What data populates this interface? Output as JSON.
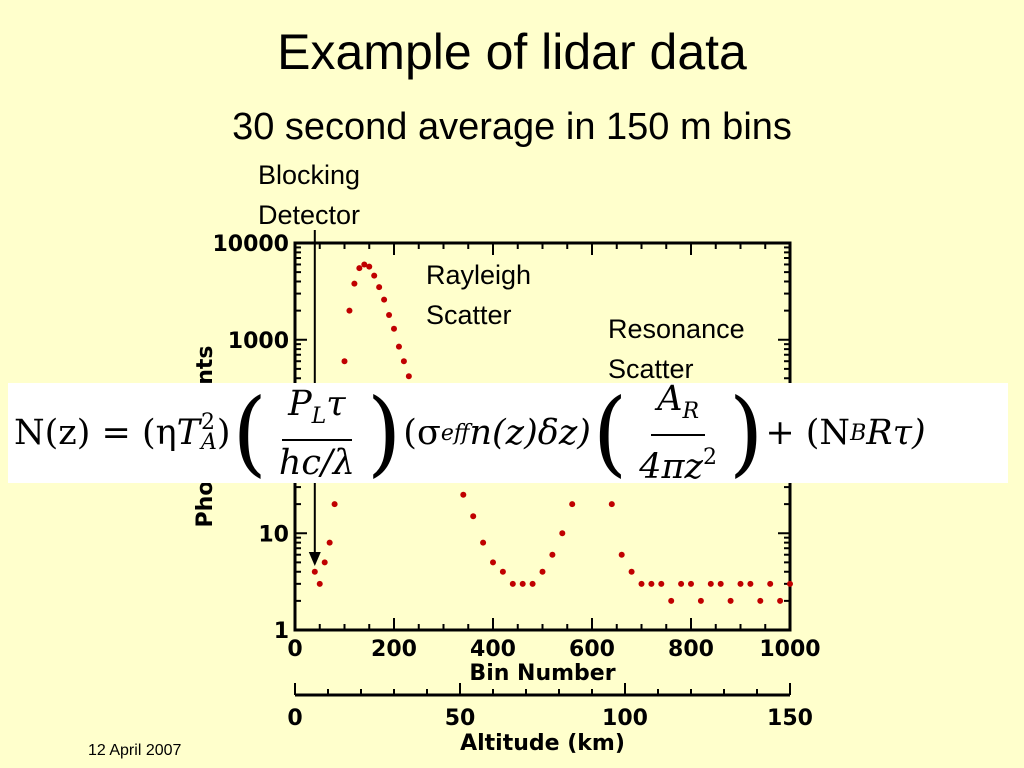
{
  "slide": {
    "title": "Example of lidar data",
    "subtitle": "30 second average in 150 m bins",
    "date": "12 April 2007"
  },
  "annotations": {
    "blocking": [
      "Blocking",
      "Detector"
    ],
    "rayleigh": [
      "Rayleigh",
      "Scatter"
    ],
    "resonance": [
      "Resonance",
      "Scatter"
    ]
  },
  "equation": {
    "text": "N(z) = (ηT_A^2) (P_L τ / (hc/λ)) (σ_eff n(z) δz) (A_R / (4π z^2)) + (N_B R τ)",
    "lhs": "N(z) = (η",
    "T": "T",
    "T_sup": "2",
    "T_sub": "A",
    "close": ")",
    "frac1_num_P": "P",
    "frac1_num_sub": "L",
    "frac1_num_tau": "τ",
    "frac1_den": "hc/λ",
    "sigma": "(σ",
    "sigma_sub": "eff",
    "mid": "n(z)δz)",
    "frac2_num_A": "A",
    "frac2_num_sub": "R",
    "frac2_den": "4πz",
    "frac2_den_sup": "2",
    "plus": "+ (N",
    "plus_sub": "B",
    "tail": "Rτ)"
  },
  "chart_data": {
    "type": "scatter",
    "xlabel": "Bin Number",
    "ylabel": "Photon Counts",
    "xlim": [
      0,
      1000
    ],
    "ylim": [
      1,
      10000
    ],
    "yscale": "log",
    "xticks": [
      "0",
      "200",
      "400",
      "600",
      "800",
      "1000"
    ],
    "yticks": [
      "1",
      "10",
      "100",
      "1000",
      "10000"
    ],
    "secondary_x": {
      "label": "Altitude (km)",
      "range": [
        0,
        150
      ],
      "ticks": [
        "0",
        "50",
        "100",
        "150"
      ]
    },
    "marker_color": "#c00000",
    "series": [
      {
        "x": [
          40,
          50,
          60,
          70,
          80,
          90,
          100,
          110,
          120,
          130,
          140,
          150,
          160,
          170,
          180,
          190,
          200,
          210,
          220,
          230,
          240,
          250,
          260,
          270,
          280,
          300,
          320,
          340,
          360,
          380,
          400,
          420,
          440,
          460,
          480,
          500,
          520,
          540,
          560,
          580,
          600,
          620,
          640,
          660,
          680,
          700,
          720,
          740,
          760,
          780,
          800,
          820,
          840,
          860,
          880,
          900,
          920,
          940,
          960,
          980,
          1000
        ],
        "y": [
          4,
          3,
          5,
          8,
          20,
          120,
          600,
          2000,
          3800,
          5500,
          6000,
          5700,
          4600,
          3500,
          2600,
          1800,
          1300,
          850,
          600,
          420,
          300,
          220,
          160,
          120,
          90,
          60,
          40,
          25,
          15,
          8,
          5,
          4,
          3,
          3,
          3,
          4,
          6,
          10,
          20,
          60,
          200,
          80,
          20,
          6,
          4,
          3,
          3,
          3,
          2,
          3,
          3,
          2,
          3,
          3,
          2,
          3,
          3,
          2,
          3,
          2,
          3
        ]
      }
    ]
  },
  "colors": {
    "background": "#ffffcc",
    "marker": "#c00000",
    "equation_bg": "#ffffff"
  }
}
